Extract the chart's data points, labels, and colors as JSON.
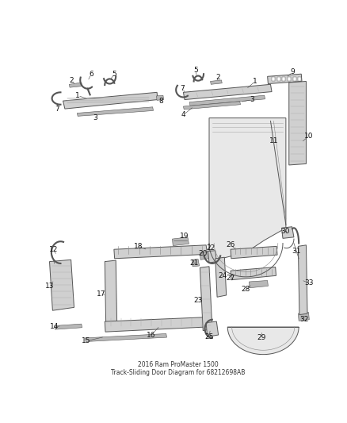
{
  "title": "2016 Ram ProMaster 1500 Track-Sliding Door Diagram for 68212698AB",
  "bg": "#ffffff",
  "fw": 4.38,
  "fh": 5.33,
  "dpi": 100,
  "ec": "#555555",
  "fc_light": "#e8e8e8",
  "fc_mid": "#d0d0d0",
  "fc_dark": "#b8b8b8",
  "lw_thin": 0.4,
  "lw_med": 0.7,
  "lw_thick": 1.0,
  "fs": 6.5,
  "tc": "#111111",
  "lc": "#444444"
}
